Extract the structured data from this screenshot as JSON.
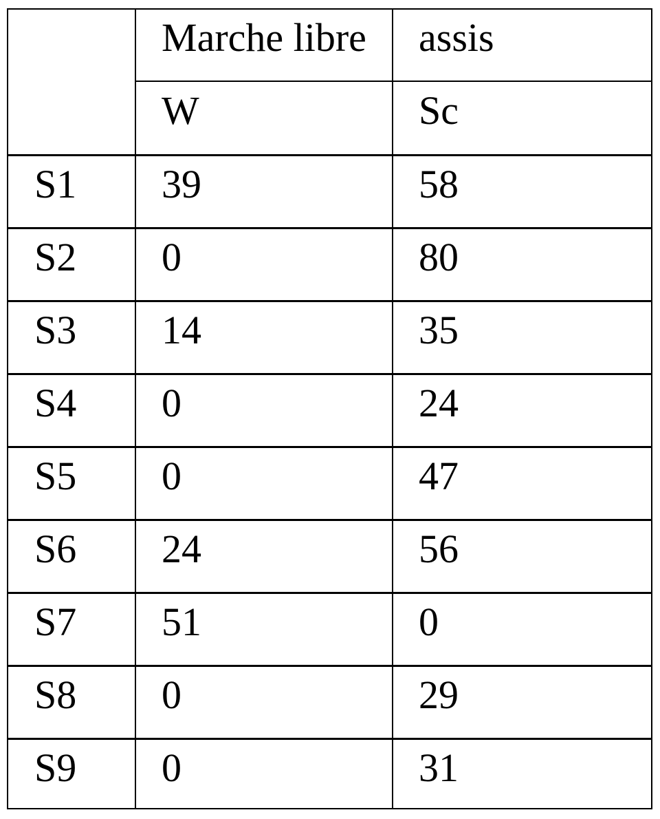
{
  "table": {
    "header_row1": [
      "",
      "Marche libre",
      "assis"
    ],
    "header_row2": [
      "",
      "W",
      "Sc"
    ],
    "rows": [
      {
        "label": "S1",
        "W": "39",
        "Sc": "58"
      },
      {
        "label": "S2",
        "W": "0",
        "Sc": "80"
      },
      {
        "label": "S3",
        "W": "14",
        "Sc": "35"
      },
      {
        "label": "S4",
        "W": "0",
        "Sc": "24"
      },
      {
        "label": "S5",
        "W": "0",
        "Sc": "47"
      },
      {
        "label": "S6",
        "W": "24",
        "Sc": "56"
      },
      {
        "label": "S7",
        "W": "51",
        "Sc": "0"
      },
      {
        "label": "S8",
        "W": "0",
        "Sc": "29"
      },
      {
        "label": "S9",
        "W": "0",
        "Sc": "31"
      }
    ]
  }
}
